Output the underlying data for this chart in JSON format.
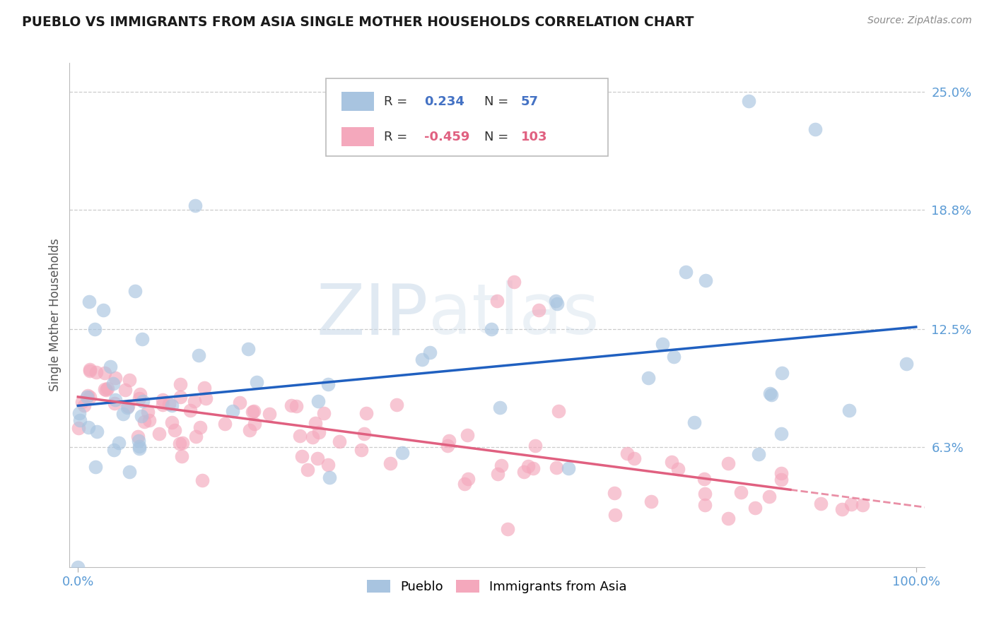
{
  "title": "PUEBLO VS IMMIGRANTS FROM ASIA SINGLE MOTHER HOUSEHOLDS CORRELATION CHART",
  "source": "Source: ZipAtlas.com",
  "ylabel": "Single Mother Households",
  "xlim": [
    0,
    100
  ],
  "ylim": [
    0,
    26.5
  ],
  "yticks": [
    6.3,
    12.5,
    18.8,
    25.0
  ],
  "ytick_labels": [
    "6.3%",
    "12.5%",
    "18.8%",
    "25.0%"
  ],
  "pueblo_color": "#a8c4e0",
  "asia_color": "#f4a8bc",
  "trend_blue": "#2060c0",
  "trend_pink": "#e06080",
  "watermark_zip": "ZIP",
  "watermark_atlas": "atlas",
  "pueblo_seed": 12,
  "asia_seed": 99,
  "blue_intercept": 8.0,
  "blue_slope": 0.033,
  "pink_intercept": 8.5,
  "pink_slope": -0.055
}
